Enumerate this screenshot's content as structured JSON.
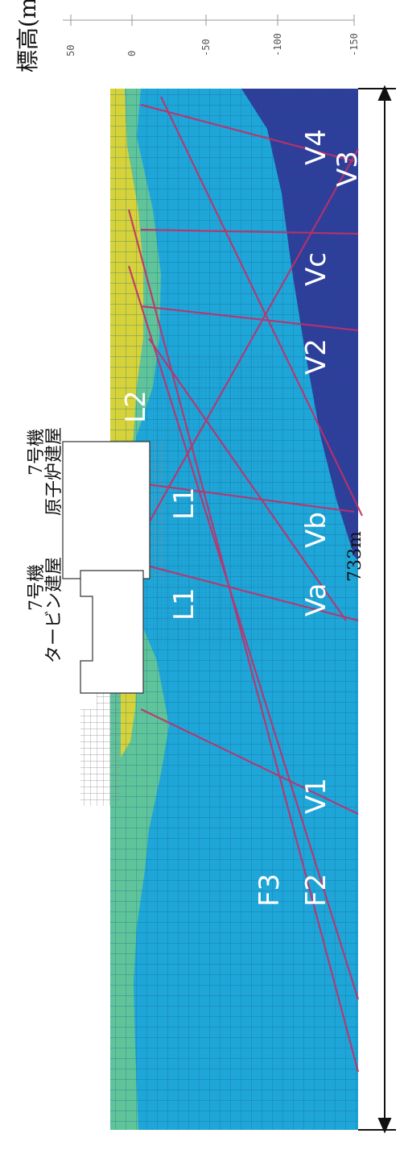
{
  "axis": {
    "title": "標高(m)",
    "ticks": [
      "50",
      "0",
      "-50",
      "-100",
      "-150"
    ]
  },
  "dimension": {
    "length_label": "733m"
  },
  "buildings": {
    "reactor_line1": "7号機",
    "reactor_line2": "原子炉建屋",
    "turbine_line1": "7号機",
    "turbine_line2": "タービン建屋"
  },
  "zone_labels": {
    "V4": "V4",
    "V3": "V3",
    "Vc": "Vc",
    "V2": "V2",
    "Vb": "Vb",
    "Va": "Va",
    "V1": "V1",
    "L1_upper": "L1",
    "L1_lower": "L1",
    "L2": "L2",
    "F2": "F2",
    "F3": "F3"
  },
  "colors": {
    "main_layer": "#1fa6d8",
    "deep_layer": "#2e3e9a",
    "surface_layer": "#d6d23a",
    "green_layer": "#5fc49a",
    "fault_line": "#c0306a",
    "mesh_line": "#0d5d86"
  }
}
